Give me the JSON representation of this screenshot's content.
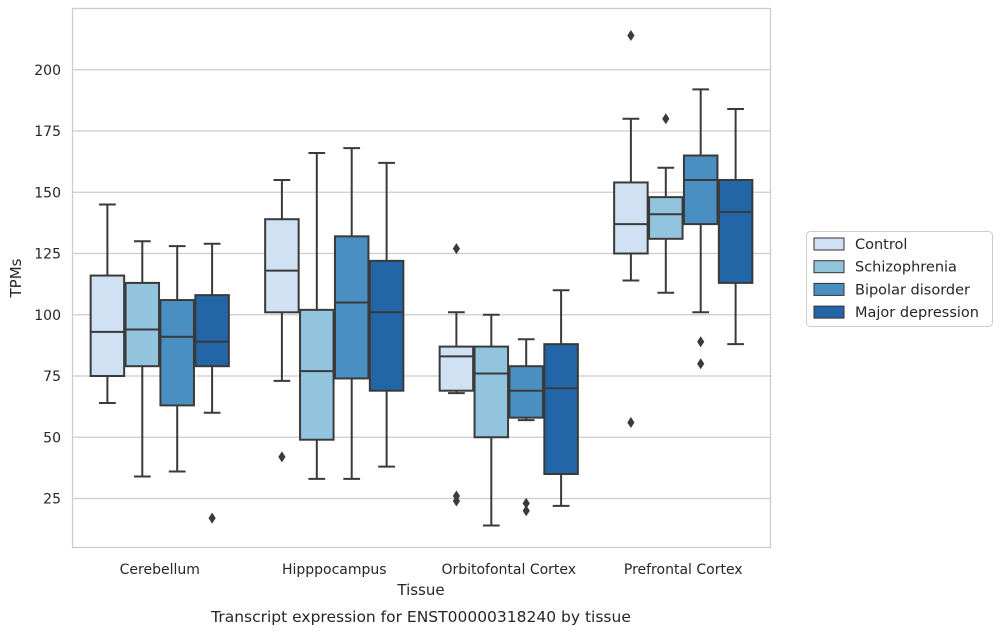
{
  "chart_data": {
    "type": "box",
    "categories": [
      "Cerebellum",
      "Hipppocampus",
      "Orbitofontal Cortex",
      "Prefrontal Cortex"
    ],
    "xlabel": "Tissue",
    "ylabel": "TPMs",
    "caption": "Transcript expression for ENST00000318240 by tissue",
    "ylim": [
      5,
      225
    ],
    "yticks": [
      25,
      50,
      75,
      100,
      125,
      150,
      175,
      200
    ],
    "grid": "horizontal",
    "legend_position": "right",
    "series": [
      {
        "name": "Control",
        "color": "#cfe1f2",
        "boxes": [
          {
            "whisker_low": 64,
            "q1": 75,
            "median": 93,
            "q3": 116,
            "whisker_high": 145,
            "outliers": []
          },
          {
            "whisker_low": 73,
            "q1": 101,
            "median": 118,
            "q3": 139,
            "whisker_high": 155,
            "outliers": [
              42
            ]
          },
          {
            "whisker_low": 68,
            "q1": 69,
            "median": 83,
            "q3": 87,
            "whisker_high": 101,
            "outliers": [
              127,
              26,
              24
            ]
          },
          {
            "whisker_low": 114,
            "q1": 125,
            "median": 137,
            "q3": 154,
            "whisker_high": 180,
            "outliers": [
              214,
              56
            ]
          }
        ]
      },
      {
        "name": "Schizophrenia",
        "color": "#93c4de",
        "boxes": [
          {
            "whisker_low": 34,
            "q1": 79,
            "median": 94,
            "q3": 113,
            "whisker_high": 130,
            "outliers": []
          },
          {
            "whisker_low": 33,
            "q1": 49,
            "median": 77,
            "q3": 102,
            "whisker_high": 166,
            "outliers": []
          },
          {
            "whisker_low": 14,
            "q1": 50,
            "median": 76,
            "q3": 87,
            "whisker_high": 100,
            "outliers": []
          },
          {
            "whisker_low": 109,
            "q1": 131,
            "median": 141,
            "q3": 148,
            "whisker_high": 160,
            "outliers": [
              180
            ]
          }
        ]
      },
      {
        "name": "Bipolar disorder",
        "color": "#4a8fc1",
        "boxes": [
          {
            "whisker_low": 36,
            "q1": 63,
            "median": 91,
            "q3": 106,
            "whisker_high": 128,
            "outliers": []
          },
          {
            "whisker_low": 33,
            "q1": 74,
            "median": 105,
            "q3": 132,
            "whisker_high": 168,
            "outliers": []
          },
          {
            "whisker_low": 57,
            "q1": 58,
            "median": 69,
            "q3": 79,
            "whisker_high": 90,
            "outliers": [
              23,
              20
            ]
          },
          {
            "whisker_low": 101,
            "q1": 137,
            "median": 155,
            "q3": 165,
            "whisker_high": 192,
            "outliers": [
              89,
              80
            ]
          }
        ]
      },
      {
        "name": "Major depression",
        "color": "#2266a8",
        "boxes": [
          {
            "whisker_low": 60,
            "q1": 79,
            "median": 89,
            "q3": 108,
            "whisker_high": 129,
            "outliers": [
              17
            ]
          },
          {
            "whisker_low": 38,
            "q1": 69,
            "median": 101,
            "q3": 122,
            "whisker_high": 162,
            "outliers": []
          },
          {
            "whisker_low": 22,
            "q1": 35,
            "median": 70,
            "q3": 88,
            "whisker_high": 110,
            "outliers": []
          },
          {
            "whisker_low": 88,
            "q1": 113,
            "median": 142,
            "q3": 155,
            "whisker_high": 184,
            "outliers": []
          }
        ]
      }
    ]
  }
}
